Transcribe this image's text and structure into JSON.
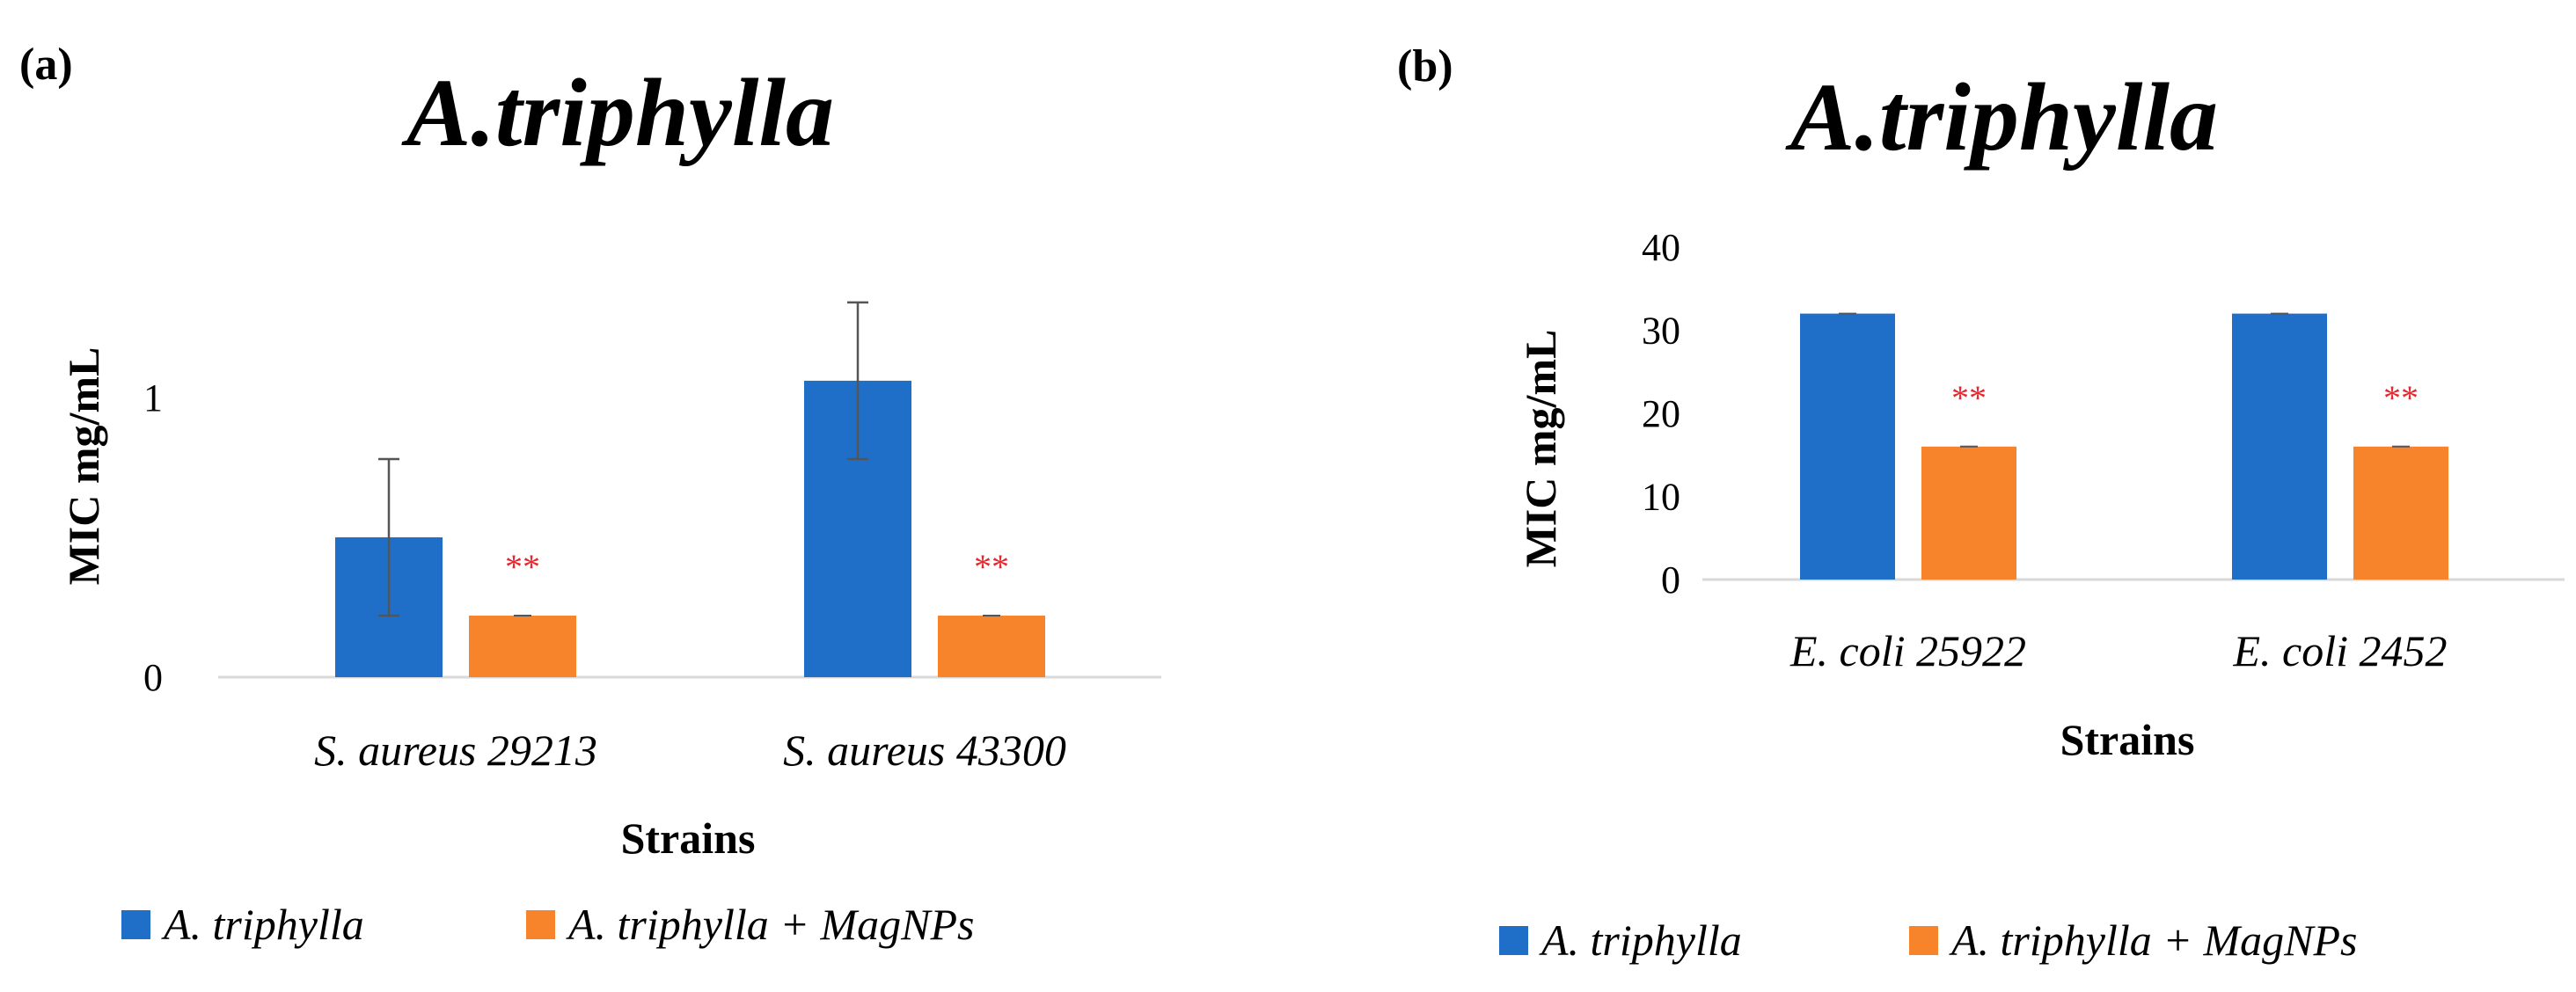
{
  "chart_data": [
    {
      "panel_label": "(a)",
      "type": "bar",
      "title": "A.triphylla",
      "xlabel": "Strains",
      "ylabel": "MIC mg/mL",
      "ylim": [
        0,
        1.4
      ],
      "yticks": [
        0,
        1
      ],
      "grid": false,
      "legend_position": "bottom",
      "categories": [
        "S. aureus 29213",
        "S. aureus 43300"
      ],
      "series": [
        {
          "name": "A. triphylla",
          "color": "#1F6FC9",
          "values": [
            0.5,
            1.06
          ],
          "error": [
            0.28,
            0.28
          ],
          "annotations": [
            "",
            ""
          ]
        },
        {
          "name": "A. triphylla + MagNPs",
          "color": "#F7832A",
          "values": [
            0.22,
            0.22
          ],
          "error": [
            0,
            0
          ],
          "annotations": [
            "**",
            "**"
          ]
        }
      ]
    },
    {
      "panel_label": "(b)",
      "type": "bar",
      "title": "A.triphylla",
      "xlabel": "Strains",
      "ylabel": "MIC mg/mL",
      "ylim": [
        0,
        40
      ],
      "yticks": [
        0,
        10,
        20,
        30,
        40
      ],
      "grid": false,
      "legend_position": "bottom",
      "categories": [
        "E. coli 25922",
        "E. coli 2452"
      ],
      "series": [
        {
          "name": "A. triphylla",
          "color": "#1F6FC9",
          "values": [
            32,
            32
          ],
          "error": [
            0,
            0
          ],
          "annotations": [
            "",
            ""
          ]
        },
        {
          "name": "A. triphylla + MagNPs",
          "color": "#F7832A",
          "values": [
            16,
            16
          ],
          "error": [
            0,
            0
          ],
          "annotations": [
            "**",
            "**"
          ]
        }
      ]
    }
  ]
}
